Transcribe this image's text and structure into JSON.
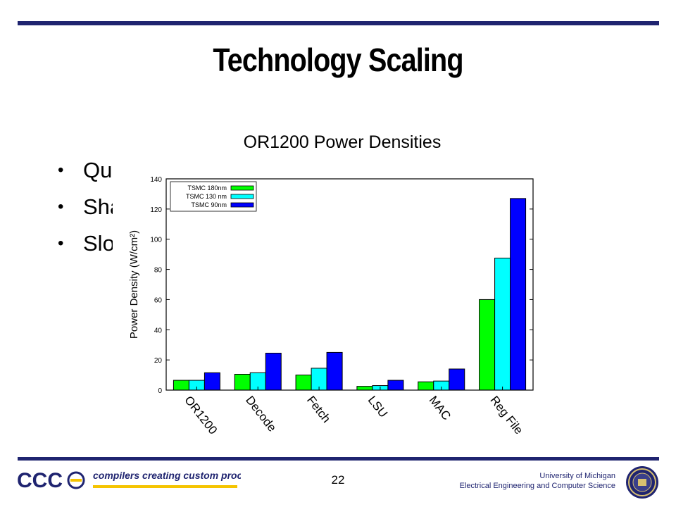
{
  "slide": {
    "title": "Technology Scaling",
    "bullets": [
      {
        "text": "Quickly shrinking feature sizes"
      },
      {
        "text": "Sha"
      },
      {
        "text": "Slov"
      }
    ],
    "bullet_symbol": "•"
  },
  "footer": {
    "logo_letters": "CCC",
    "tagline": "compilers creating custom processors",
    "page_number": "22",
    "university": "University of Michigan",
    "department": "Electrical Engineering and Computer Science"
  },
  "colors": {
    "rule": "#1f2470",
    "series_180": "#00ff00",
    "series_130": "#00ffff",
    "series_90": "#0000ff",
    "tagline": "#1f2470",
    "tagline_underline": "#f5c400"
  },
  "chart_data": {
    "type": "bar",
    "title": "OR1200 Power Densities",
    "ylabel": "Power Density (W/cm²)",
    "xlabel": "",
    "categories": [
      "OR1200",
      "Decode",
      "Fetch",
      "LSU",
      "MAC",
      "Reg File"
    ],
    "ylim": [
      0,
      140
    ],
    "yticks": [
      0,
      20,
      40,
      60,
      80,
      100,
      120,
      140
    ],
    "legend_position": "top-left",
    "grid": false,
    "series": [
      {
        "name": "TSMC 180nm",
        "color": "#00ff00",
        "values": [
          6.5,
          10.5,
          10,
          2.5,
          5.5,
          60
        ]
      },
      {
        "name": "TSMC 130 nm",
        "color": "#00ffff",
        "values": [
          6.5,
          11.5,
          14.5,
          3,
          6,
          87.5
        ]
      },
      {
        "name": "TSMC 90nm",
        "color": "#0000ff",
        "values": [
          11.5,
          24.5,
          25,
          6.5,
          14,
          127
        ]
      }
    ]
  }
}
